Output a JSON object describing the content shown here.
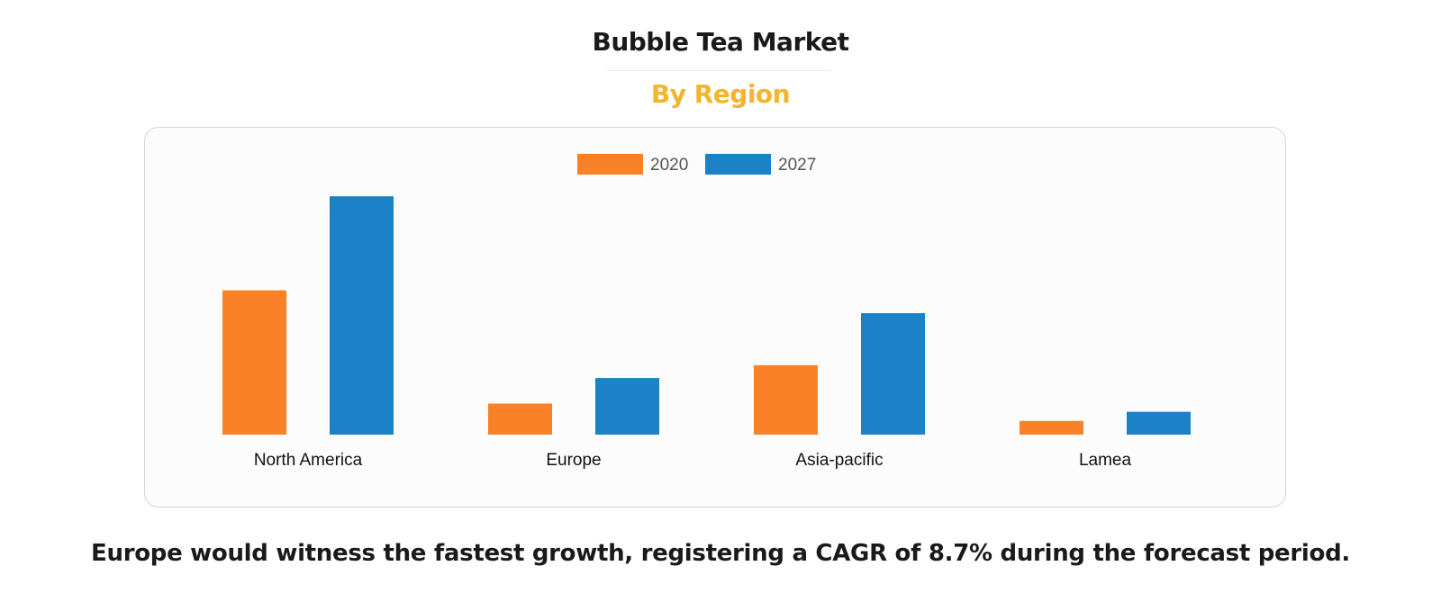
{
  "header": {
    "title": "Bubble Tea Market",
    "subtitle": "By Region"
  },
  "footnote": "Europe would witness the fastest growth, registering a CAGR of 8.7% during the forecast period.",
  "colors": {
    "title": "#1a1a1a",
    "subtitle_accent": "#f2b52b",
    "series_2020": "#fb8128",
    "series_2027": "#1b82c8"
  },
  "chart_data": {
    "type": "bar",
    "categories": [
      "North America",
      "Europe",
      "Asia-pacific",
      "Lamea"
    ],
    "series": [
      {
        "name": "2020",
        "color": "#fb8128",
        "values": [
          158,
          34,
          76,
          15
        ]
      },
      {
        "name": "2027",
        "color": "#1b82c8",
        "values": [
          261,
          62,
          133,
          25
        ]
      }
    ],
    "ylim": [
      0,
      270
    ],
    "grid": false,
    "legend": "top-center",
    "yaxis_visible": false
  }
}
